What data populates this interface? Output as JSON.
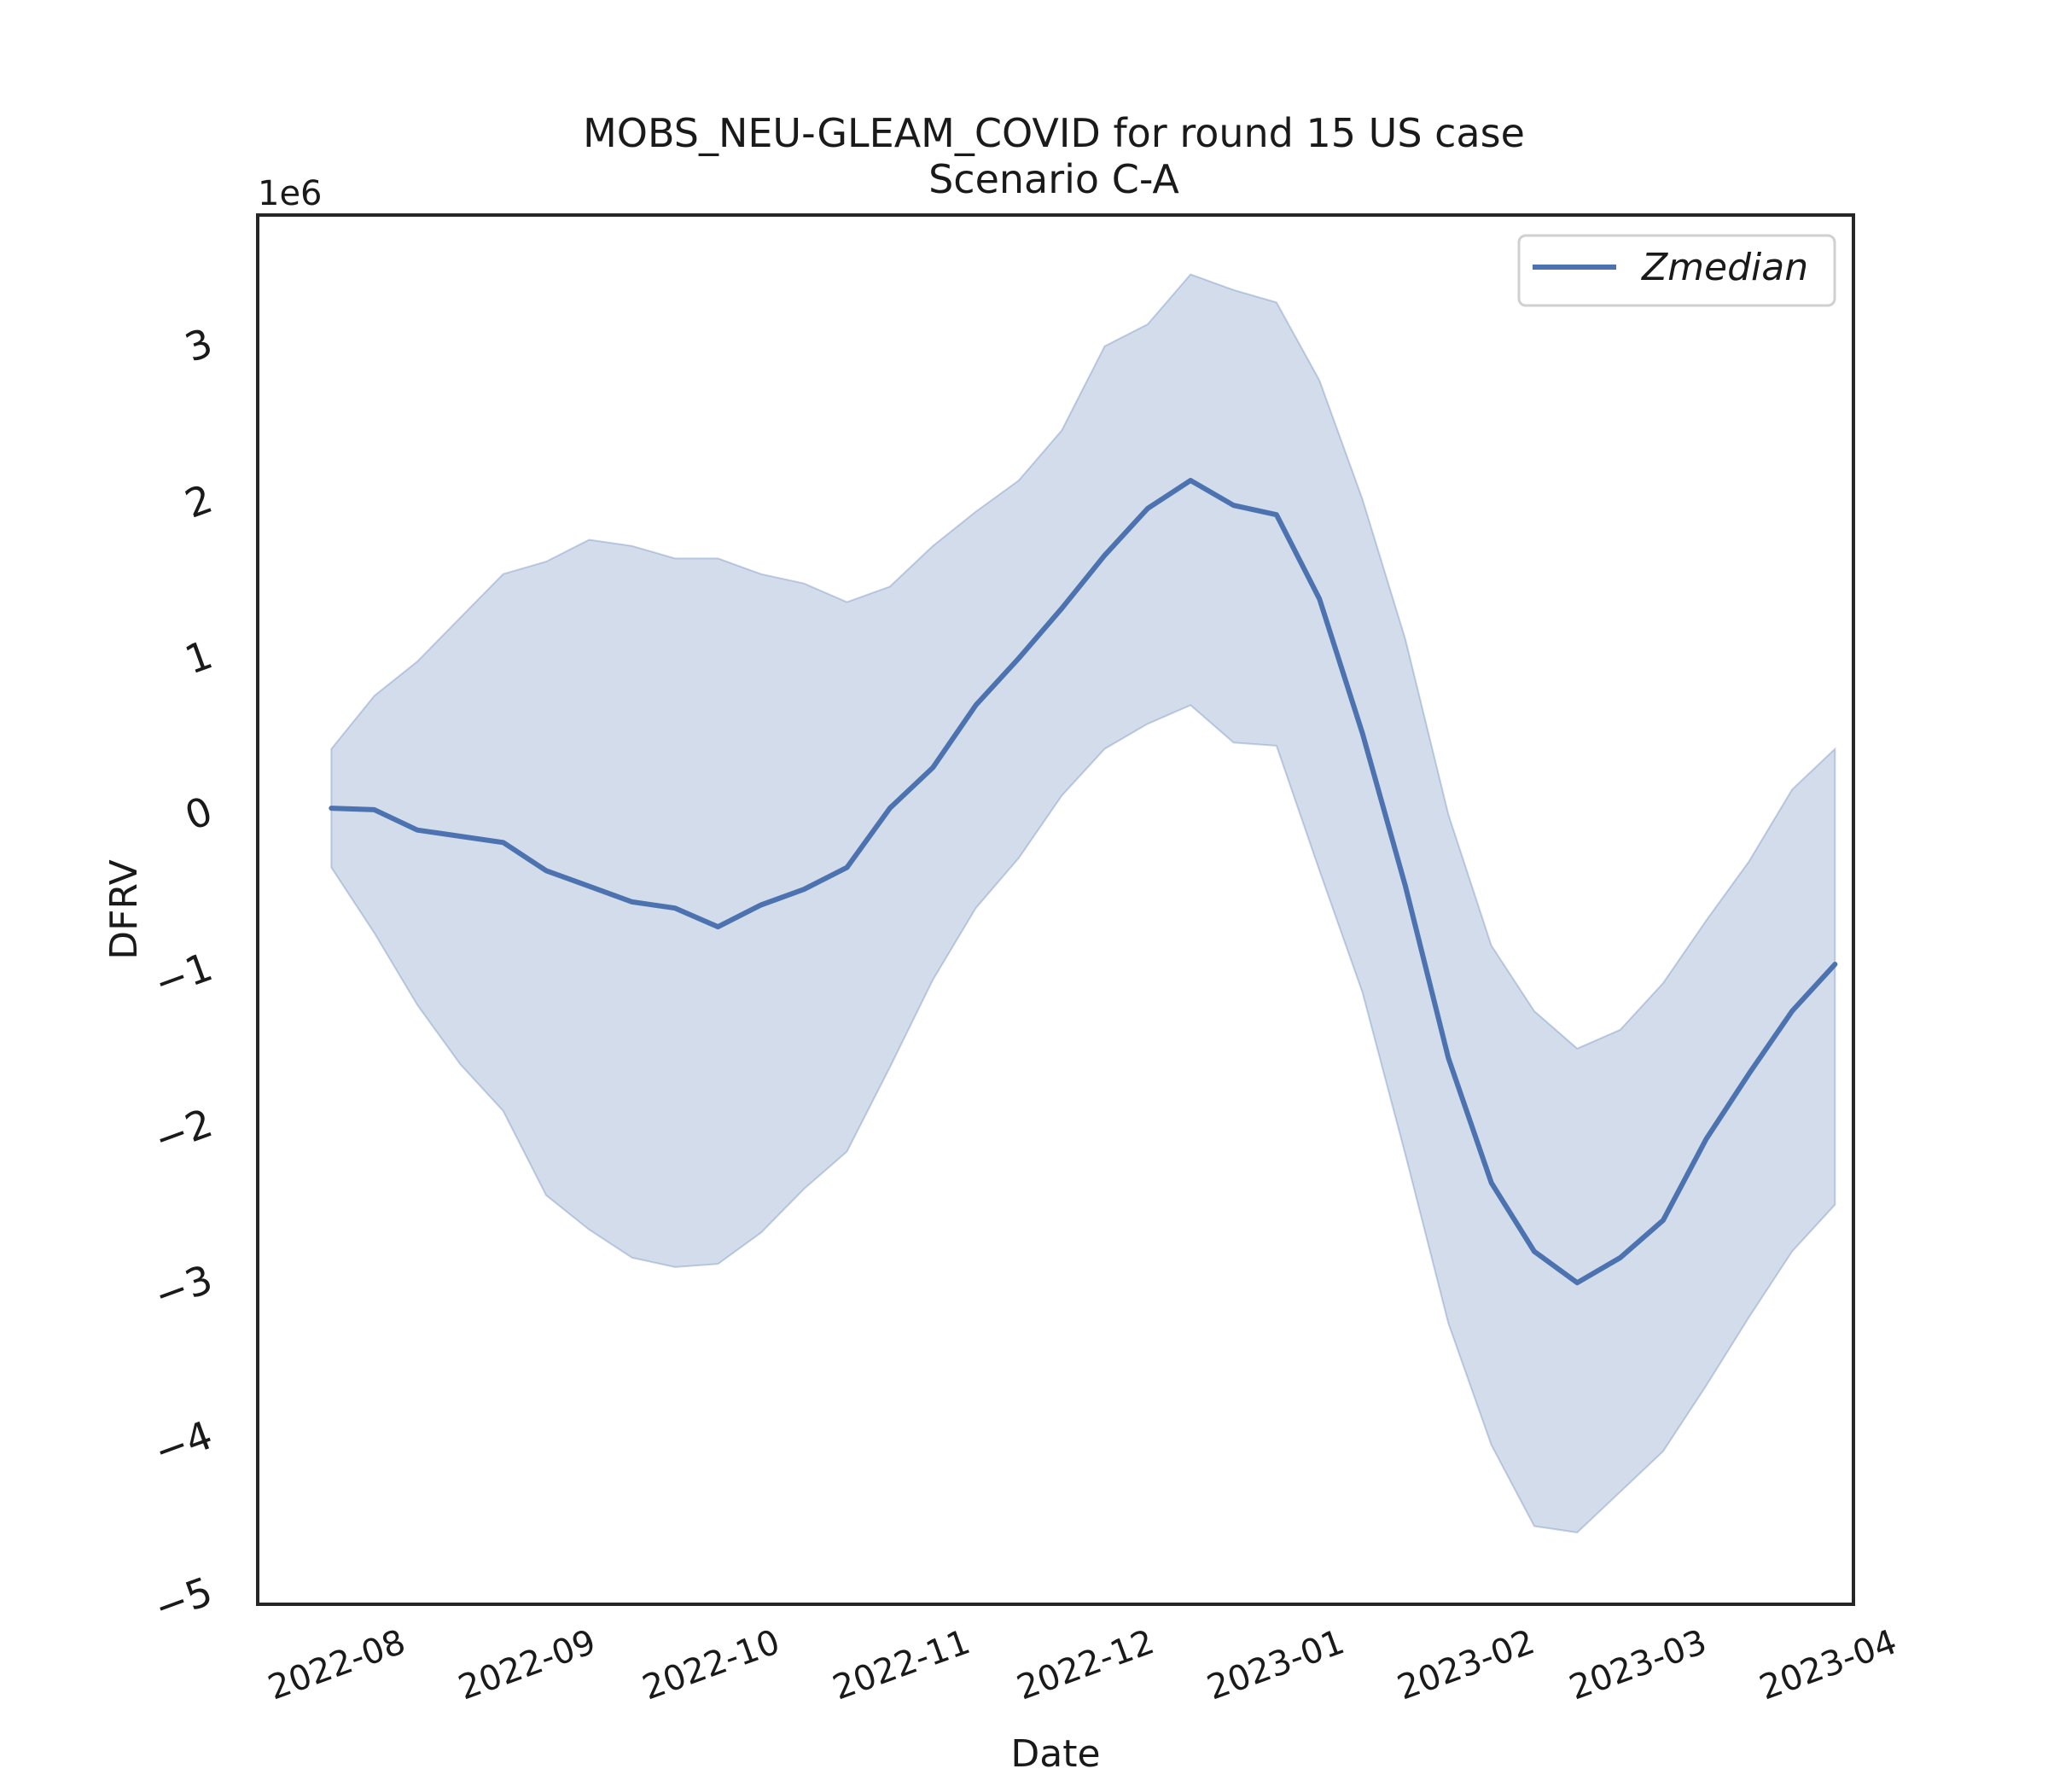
{
  "chart_data": {
    "type": "line",
    "title": "MOBS_NEU-GLEAM_COVID for round 15 US case",
    "subtitle": "Scenario C-A",
    "xlabel": "Date",
    "ylabel": "DFRV",
    "y_offset_label": "1e6",
    "y_scale": 1000000,
    "xlim": [
      "2022-07-18",
      "2023-04-04"
    ],
    "ylim": [
      -5.1,
      3.8
    ],
    "x_ticks": [
      "2022-08",
      "2022-09",
      "2022-10",
      "2022-11",
      "2022-12",
      "2023-01",
      "2023-02",
      "2023-03",
      "2023-04"
    ],
    "y_ticks": [
      3,
      2,
      1,
      0,
      -1,
      -2,
      -3,
      -4,
      -5
    ],
    "grid": false,
    "legend_position": "top-right",
    "colors": {
      "line": "#4c72b0",
      "band": "#4c72b0"
    },
    "x": [
      "2022-07-30",
      "2022-08-06",
      "2022-08-13",
      "2022-08-20",
      "2022-08-27",
      "2022-09-03",
      "2022-09-10",
      "2022-09-17",
      "2022-09-24",
      "2022-10-01",
      "2022-10-08",
      "2022-10-15",
      "2022-10-22",
      "2022-10-29",
      "2022-11-05",
      "2022-11-12",
      "2022-11-19",
      "2022-11-26",
      "2022-12-03",
      "2022-12-10",
      "2022-12-17",
      "2022-12-24",
      "2022-12-31",
      "2023-01-07",
      "2023-01-14",
      "2023-01-21",
      "2023-01-28",
      "2023-02-04",
      "2023-02-11",
      "2023-02-18",
      "2023-02-25",
      "2023-03-04",
      "2023-03-11",
      "2023-03-18",
      "2023-03-25",
      "2023-04-01"
    ],
    "series": [
      {
        "name": "Zmedian",
        "values": [
          0.0,
          -0.01,
          -0.14,
          -0.18,
          -0.22,
          -0.4,
          -0.5,
          -0.6,
          -0.64,
          -0.76,
          -0.62,
          -0.52,
          -0.38,
          0.0,
          0.26,
          0.66,
          0.96,
          1.28,
          1.62,
          1.92,
          2.1,
          1.94,
          1.88,
          1.34,
          0.48,
          -0.5,
          -1.6,
          -2.4,
          -2.84,
          -3.04,
          -2.88,
          -2.64,
          -2.12,
          -1.7,
          -1.3,
          -1.0
        ]
      }
    ],
    "band": {
      "upper": [
        0.38,
        0.72,
        0.94,
        1.22,
        1.5,
        1.58,
        1.72,
        1.68,
        1.6,
        1.6,
        1.5,
        1.44,
        1.32,
        1.42,
        1.68,
        1.9,
        2.1,
        2.42,
        2.96,
        3.1,
        3.42,
        3.32,
        3.24,
        2.74,
        1.98,
        1.08,
        -0.04,
        -0.88,
        -1.3,
        -1.54,
        -1.42,
        -1.12,
        -0.72,
        -0.34,
        0.12,
        0.38
      ],
      "lower": [
        -0.38,
        -0.8,
        -1.26,
        -1.64,
        -1.94,
        -2.48,
        -2.7,
        -2.88,
        -2.94,
        -2.92,
        -2.72,
        -2.44,
        -2.2,
        -1.66,
        -1.1,
        -0.64,
        -0.32,
        0.08,
        0.38,
        0.54,
        0.66,
        0.42,
        0.4,
        -0.4,
        -1.18,
        -2.22,
        -3.3,
        -4.08,
        -4.6,
        -4.64,
        -4.38,
        -4.12,
        -3.7,
        -3.26,
        -2.84,
        -2.54
      ]
    }
  }
}
